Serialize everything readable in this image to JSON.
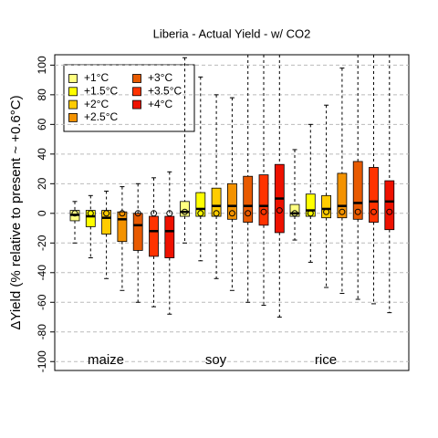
{
  "chart_data": {
    "type": "box",
    "title": "Liberia - Actual Yield - w/ CO2",
    "ylabel": "ΔYield (% relative to present ~ +0.6°C)",
    "ylim": [
      -106,
      107
    ],
    "yticks": [
      -100,
      -80,
      -60,
      -40,
      -20,
      0,
      20,
      40,
      60,
      80,
      100
    ],
    "grid": true,
    "groups": [
      "maize",
      "soy",
      "rice"
    ],
    "legend": "top-left",
    "series": [
      {
        "name": "+1°C",
        "color": "#FFFF80",
        "stats": [
          {
            "low": -20,
            "q1": -5,
            "median": -1,
            "q3": 2,
            "high": 8,
            "mean": 0
          },
          {
            "low": -20,
            "q1": -2,
            "median": 1,
            "q3": 8,
            "high": 105,
            "mean": 1
          },
          {
            "low": -18,
            "q1": -2,
            "median": 0,
            "q3": 6,
            "high": 43,
            "mean": 0
          }
        ]
      },
      {
        "name": "+1.5°C",
        "color": "#FFFF00",
        "stats": [
          {
            "low": -30,
            "q1": -9,
            "median": -2,
            "q3": 2,
            "high": 12,
            "mean": 0
          },
          {
            "low": -32,
            "q1": -2,
            "median": 3,
            "q3": 14,
            "high": 92,
            "mean": 0
          },
          {
            "low": -33,
            "q1": -2,
            "median": 2,
            "q3": 13,
            "high": 60,
            "mean": 0
          }
        ]
      },
      {
        "name": "+2°C",
        "color": "#FFCC00",
        "stats": [
          {
            "low": -44,
            "q1": -14,
            "median": -3,
            "q3": 2,
            "high": 15,
            "mean": 0
          },
          {
            "low": -44,
            "q1": -2,
            "median": 5,
            "q3": 17,
            "high": 80,
            "mean": 0
          },
          {
            "low": -50,
            "q1": -3,
            "median": 3,
            "q3": 12,
            "high": 73,
            "mean": 1
          }
        ]
      },
      {
        "name": "+2.5°C",
        "color": "#F39200",
        "stats": [
          {
            "low": -52,
            "q1": -19,
            "median": -4,
            "q3": 1,
            "high": 18,
            "mean": 0
          },
          {
            "low": -52,
            "q1": -4,
            "median": 5,
            "q3": 20,
            "high": 78,
            "mean": 0
          },
          {
            "low": -54,
            "q1": -3,
            "median": 5,
            "q3": 27,
            "high": 98,
            "mean": 1
          }
        ]
      },
      {
        "name": "+3°C",
        "color": "#E85A00",
        "stats": [
          {
            "low": -60,
            "q1": -25,
            "median": -8,
            "q3": 0,
            "high": 20,
            "mean": 0
          },
          {
            "low": -60,
            "q1": -6,
            "median": 5,
            "q3": 25,
            "high": 107,
            "mean": 0
          },
          {
            "low": -58,
            "q1": -4,
            "median": 7,
            "q3": 35,
            "high": 107,
            "mean": 1
          }
        ]
      },
      {
        "name": "+3.5°C",
        "color": "#FF3300",
        "stats": [
          {
            "low": -63,
            "q1": -29,
            "median": -12,
            "q3": -2,
            "high": 24,
            "mean": 0
          },
          {
            "low": -62,
            "q1": -8,
            "median": 5,
            "q3": 26,
            "high": 107,
            "mean": 1
          },
          {
            "low": -61,
            "q1": -6,
            "median": 8,
            "q3": 31,
            "high": 107,
            "mean": 1
          }
        ]
      },
      {
        "name": "+4°C",
        "color": "#EE1100",
        "stats": [
          {
            "low": -68,
            "q1": -30,
            "median": -12,
            "q3": -2,
            "high": 28,
            "mean": 0
          },
          {
            "low": -70,
            "q1": -13,
            "median": 10,
            "q3": 33,
            "high": 107,
            "mean": 2
          },
          {
            "low": -67,
            "q1": -11,
            "median": 8,
            "q3": 22,
            "high": 107,
            "mean": 1
          }
        ]
      }
    ]
  }
}
